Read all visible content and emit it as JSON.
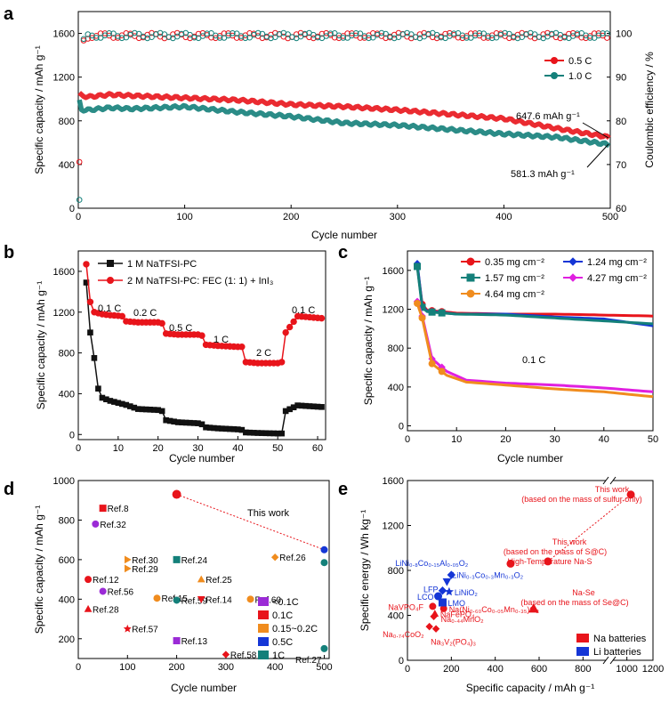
{
  "colors": {
    "red": "#e8141b",
    "teal": "#14807a",
    "black": "#111111",
    "blue": "#1536d6",
    "magenta": "#e020e0",
    "orange": "#f08c1e",
    "purple": "#9b2bd6"
  },
  "chart_data": [
    {
      "panel": "a",
      "type": "line",
      "xlabel": "Cycle number",
      "ylabel": "Specific capacity / mAh g⁻¹",
      "y2label": "Coulombic efficiency / %",
      "xlim": [
        0,
        500
      ],
      "ylim": [
        0,
        1800
      ],
      "y2lim": [
        60,
        105
      ],
      "xticks": [
        "0",
        "100",
        "200",
        "300",
        "400",
        "500"
      ],
      "yticks": [
        "0",
        "400",
        "800",
        "1200",
        "1600"
      ],
      "y2ticks": [
        "60",
        "70",
        "80",
        "90",
        "100"
      ],
      "series": [
        {
          "name": "0.5 C",
          "color": "red",
          "x": [
            1,
            3,
            10,
            30,
            50,
            100,
            150,
            200,
            250,
            300,
            350,
            400,
            450,
            500
          ],
          "values": [
            1050,
            1030,
            1020,
            1040,
            1030,
            1010,
            990,
            950,
            930,
            900,
            860,
            820,
            730,
            648
          ]
        },
        {
          "name": "1.0 C",
          "color": "teal",
          "x": [
            1,
            3,
            10,
            30,
            50,
            100,
            150,
            200,
            250,
            300,
            350,
            400,
            450,
            500
          ],
          "values": [
            980,
            900,
            900,
            920,
            910,
            930,
            880,
            840,
            780,
            760,
            720,
            680,
            650,
            581
          ]
        }
      ],
      "ce_series": [
        {
          "name": "0.5 C CE",
          "color": "red",
          "x": [
            1,
            2,
            4,
            10,
            500
          ],
          "values": [
            70,
            95,
            98,
            99.5,
            99.5
          ]
        },
        {
          "name": "1.0 C CE",
          "color": "teal",
          "x": [
            1,
            2,
            4,
            10,
            500
          ],
          "values": [
            62,
            92,
            98,
            99.5,
            99.5
          ]
        }
      ],
      "annotations": [
        "647.6 mAh g⁻¹",
        "581.3 mAh g⁻¹"
      ],
      "legend": "right"
    },
    {
      "panel": "b",
      "type": "line",
      "xlabel": "Cycle number",
      "ylabel": "Specific capacity / mAh g⁻¹",
      "xlim": [
        0,
        62
      ],
      "ylim": [
        -50,
        1800
      ],
      "xticks": [
        "0",
        "10",
        "20",
        "30",
        "40",
        "50",
        "60"
      ],
      "yticks": [
        "0",
        "400",
        "800",
        "1200",
        "1600"
      ],
      "series": [
        {
          "name": "1 M NaTFSI-PC",
          "color": "black",
          "x": [
            2,
            3,
            4,
            5,
            6,
            8,
            10,
            12,
            15,
            20,
            21,
            22,
            25,
            30,
            31,
            32,
            35,
            40,
            41,
            42,
            45,
            50,
            51,
            52,
            55,
            61
          ],
          "values": [
            1490,
            1000,
            750,
            450,
            360,
            330,
            310,
            290,
            250,
            240,
            230,
            140,
            120,
            110,
            100,
            70,
            60,
            50,
            45,
            20,
            15,
            10,
            10,
            230,
            285,
            270
          ]
        },
        {
          "name": "2 M NaTFSI-PC: FEC (1: 1) + InI₃",
          "color": "red",
          "x": [
            2,
            3,
            4,
            5,
            6,
            8,
            10,
            11,
            12,
            15,
            20,
            21,
            22,
            25,
            30,
            31,
            32,
            35,
            40,
            41,
            42,
            45,
            50,
            51,
            52,
            55,
            61
          ],
          "values": [
            1670,
            1300,
            1200,
            1190,
            1180,
            1170,
            1165,
            1160,
            1110,
            1100,
            1100,
            1090,
            990,
            980,
            980,
            970,
            880,
            870,
            860,
            860,
            710,
            700,
            700,
            710,
            1000,
            1160,
            1140
          ]
        }
      ],
      "rate_labels": [
        "0.1 C",
        "0.2 C",
        "0.5 C",
        "1 C",
        "2 C",
        "0.1 C"
      ],
      "legend": "top-right"
    },
    {
      "panel": "c",
      "type": "line",
      "xlabel": "Cycle number",
      "ylabel": "Specific capacity / mAh g⁻¹",
      "xlim": [
        0,
        50
      ],
      "ylim": [
        -50,
        1800
      ],
      "xticks": [
        "0",
        "10",
        "20",
        "30",
        "40",
        "50"
      ],
      "yticks": [
        "0",
        "400",
        "800",
        "1200",
        "1600"
      ],
      "series": [
        {
          "name": "0.35 mg cm⁻²",
          "color": "red",
          "x": [
            2,
            3,
            4,
            10,
            20,
            30,
            40,
            50
          ],
          "values": [
            1650,
            1250,
            1190,
            1160,
            1150,
            1150,
            1140,
            1130
          ]
        },
        {
          "name": "1.24 mg cm⁻²",
          "color": "blue",
          "x": [
            2,
            3,
            4,
            10,
            20,
            30,
            40,
            50
          ],
          "values": [
            1670,
            1230,
            1180,
            1150,
            1150,
            1120,
            1100,
            1030
          ]
        },
        {
          "name": "1.57 mg cm⁻²",
          "color": "teal",
          "x": [
            2,
            3,
            4,
            10,
            20,
            30,
            40,
            50
          ],
          "values": [
            1640,
            1220,
            1175,
            1150,
            1140,
            1110,
            1080,
            1050
          ]
        },
        {
          "name": "4.27 mg cm⁻²",
          "color": "magenta",
          "x": [
            2,
            3,
            5,
            8,
            12,
            20,
            30,
            40,
            50
          ],
          "values": [
            1280,
            1130,
            690,
            560,
            470,
            440,
            420,
            390,
            350
          ]
        },
        {
          "name": "4.64 mg cm⁻²",
          "color": "orange",
          "x": [
            2,
            3,
            5,
            8,
            12,
            20,
            30,
            40,
            50
          ],
          "values": [
            1260,
            1110,
            640,
            520,
            450,
            420,
            380,
            350,
            300
          ]
        }
      ],
      "annotations": [
        "0.1 C"
      ],
      "legend": "top"
    },
    {
      "panel": "d",
      "type": "scatter",
      "xlabel": "Cycle number",
      "ylabel": "Specific capacity / mAh g⁻¹",
      "xlim": [
        0,
        510
      ],
      "ylim": [
        100,
        1000
      ],
      "xticks": [
        "0",
        "100",
        "200",
        "300",
        "400",
        "500"
      ],
      "yticks": [
        "200",
        "400",
        "600",
        "800",
        "1000"
      ],
      "points": [
        {
          "label": "Ref.8",
          "x": 50,
          "y": 860,
          "color": "red",
          "shape": "square"
        },
        {
          "label": "Ref.32",
          "x": 35,
          "y": 780,
          "color": "purple",
          "shape": "circle"
        },
        {
          "label": "Ref.30",
          "x": 100,
          "y": 600,
          "color": "orange",
          "shape": "triangle-right"
        },
        {
          "label": "Ref.29",
          "x": 100,
          "y": 555,
          "color": "orange",
          "shape": "triangle-right"
        },
        {
          "label": "Ref.24",
          "x": 200,
          "y": 600,
          "color": "teal",
          "shape": "square-half"
        },
        {
          "label": "Ref.26",
          "x": 400,
          "y": 612,
          "color": "orange",
          "shape": "diamond-half"
        },
        {
          "label": "Ref.12",
          "x": 20,
          "y": 500,
          "color": "red",
          "shape": "circle"
        },
        {
          "label": "Ref.56",
          "x": 50,
          "y": 440,
          "color": "purple",
          "shape": "circle"
        },
        {
          "label": "Ref.25",
          "x": 250,
          "y": 500,
          "color": "orange",
          "shape": "triangle"
        },
        {
          "label": "Ref.15",
          "x": 160,
          "y": 405,
          "color": "orange",
          "shape": "circle-half"
        },
        {
          "label": "Ref.59",
          "x": 200,
          "y": 395,
          "color": "teal",
          "shape": "circle"
        },
        {
          "label": "Ref.14",
          "x": 250,
          "y": 400,
          "color": "red",
          "shape": "triangle-down"
        },
        {
          "label": "Ref.60",
          "x": 350,
          "y": 400,
          "color": "orange",
          "shape": "circle"
        },
        {
          "label": "Ref.28",
          "x": 20,
          "y": 350,
          "color": "red",
          "shape": "triangle"
        },
        {
          "label": "Ref.57",
          "x": 100,
          "y": 250,
          "color": "red",
          "shape": "star"
        },
        {
          "label": "Ref.13",
          "x": 200,
          "y": 190,
          "color": "purple",
          "shape": "square-half"
        },
        {
          "label": "Ref.58",
          "x": 300,
          "y": 120,
          "color": "red",
          "shape": "diamond"
        },
        {
          "label": "Ref.27",
          "x": 500,
          "y": 150,
          "color": "teal",
          "shape": "circle"
        },
        {
          "label": "",
          "x": 500,
          "y": 650,
          "color": "blue",
          "shape": "circle"
        },
        {
          "label": "",
          "x": 500,
          "y": 585,
          "color": "teal",
          "shape": "circle"
        }
      ],
      "this_work": {
        "label": "This work",
        "x": [
          200,
          500
        ],
        "values": [
          930,
          650
        ]
      },
      "legend_entries": [
        {
          "label": "<0.1C",
          "color": "purple"
        },
        {
          "label": "0.1C",
          "color": "red"
        },
        {
          "label": "0.15~0.2C",
          "color": "orange"
        },
        {
          "label": "0.5C",
          "color": "blue"
        },
        {
          "label": "1C",
          "color": "teal"
        }
      ],
      "legend": "bottom-right"
    },
    {
      "panel": "e",
      "type": "scatter",
      "xlabel": "Specific capacity / mAh g⁻¹",
      "ylabel": "Specific energy / Wh kg⁻¹",
      "xlim": [
        0,
        1200
      ],
      "ylim": [
        0,
        1600
      ],
      "xticks": [
        "0",
        "200",
        "400",
        "600",
        "800",
        "1000",
        "1200"
      ],
      "yticks": [
        "0",
        "400",
        "800",
        "1200",
        "1600"
      ],
      "axis_break": "x",
      "na_points": [
        {
          "label": "NaVPO₄F",
          "x": 115,
          "y": 480,
          "shape": "circle"
        },
        {
          "label": "Na(Ni₀.₆₀Co₀.₀₅Mn₀.₃₅)O₂",
          "x": 165,
          "y": 460,
          "shape": "circle"
        },
        {
          "label": "NaFePO₄",
          "x": 125,
          "y": 415,
          "shape": "triangle"
        },
        {
          "label": "Na₀.₄₄MnO₂",
          "x": 120,
          "y": 390,
          "shape": "diamond"
        },
        {
          "label": "Na₀.₇₄CoO₂",
          "x": 100,
          "y": 300,
          "shape": "diamond"
        },
        {
          "label": "Na₃V₂(PO₄)₃",
          "x": 130,
          "y": 280,
          "shape": "diamond"
        },
        {
          "label": "Na-Se",
          "x": 575,
          "y": 460,
          "shape": "triangle"
        }
      ],
      "li_points": [
        {
          "label": "LiNi₀.₈Co₀.₁₅Al₀.₀₅O₂",
          "x": 200,
          "y": 760,
          "shape": "diamond"
        },
        {
          "label": "LiNi₀.₃Co₀.₃Mn₀.₃O₂",
          "x": 180,
          "y": 700,
          "shape": "triangle-down"
        },
        {
          "label": "LFP",
          "x": 160,
          "y": 620,
          "shape": "diamond"
        },
        {
          "label": "LiNiO₂",
          "x": 190,
          "y": 610,
          "shape": "star"
        },
        {
          "label": "LCO",
          "x": 140,
          "y": 570,
          "shape": "circle"
        },
        {
          "label": "LMO",
          "x": 160,
          "y": 515,
          "shape": "square"
        }
      ],
      "this_work": {
        "label": "This work",
        "x": [
          640,
          1030
        ],
        "values": [
          880,
          1475
        ]
      },
      "high_temp_nas": {
        "x": 470,
        "y": 860
      },
      "text_labels": [
        "This work",
        "(based on the mass of sulfur only)",
        "This work",
        "(based on the mass of S@C)",
        "High-Temperature Na-S",
        "Na-Se",
        "(based on the mass of Se@C)"
      ],
      "legend_entries": [
        {
          "label": "Na batteries",
          "color": "red"
        },
        {
          "label": "Li batteries",
          "color": "blue"
        }
      ],
      "legend": "bottom-right"
    }
  ]
}
